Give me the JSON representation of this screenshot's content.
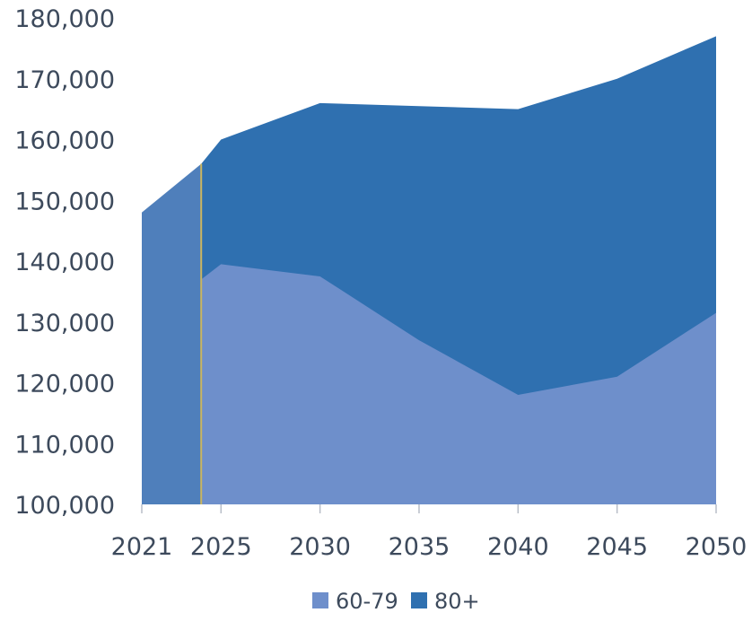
{
  "chart_data": {
    "type": "area",
    "stacked": true,
    "title": "",
    "xlabel": "",
    "ylabel": "",
    "x": [
      2021,
      2024,
      2025,
      2030,
      2035,
      2040,
      2045,
      2050
    ],
    "x_ticks": [
      "2021",
      "2025",
      "2030",
      "2035",
      "2040",
      "2045",
      "2050"
    ],
    "x_tick_values": [
      2021,
      2025,
      2030,
      2035,
      2040,
      2045,
      2050
    ],
    "y_ticks": [
      "100,000",
      "110,000",
      "120,000",
      "130,000",
      "140,000",
      "150,000",
      "160,000",
      "170,000",
      "180,000"
    ],
    "ylim": [
      100000,
      180000
    ],
    "highlight": {
      "x_range": [
        2021,
        2024
      ],
      "y_top": [
        148000,
        156000
      ],
      "color": "#4f7fbb"
    },
    "divider": {
      "x": 2024,
      "color": "#c9b560"
    },
    "series": [
      {
        "name": "60-79",
        "color": "#6e8fcb",
        "x": [
          2024,
          2025,
          2030,
          2035,
          2040,
          2045,
          2050
        ],
        "values": [
          137000,
          139500,
          137500,
          127000,
          118000,
          121000,
          131500
        ]
      },
      {
        "name": "80+",
        "color": "#2f70b0",
        "x": [
          2024,
          2025,
          2030,
          2035,
          2040,
          2045,
          2050
        ],
        "top_values": [
          156000,
          160000,
          166000,
          165500,
          165000,
          170000,
          177000
        ]
      }
    ],
    "legend": {
      "position": "bottom",
      "items": [
        {
          "label": "60-79",
          "color": "#6e8fcb"
        },
        {
          "label": "80+",
          "color": "#2f70b0"
        }
      ]
    },
    "grid": false
  }
}
